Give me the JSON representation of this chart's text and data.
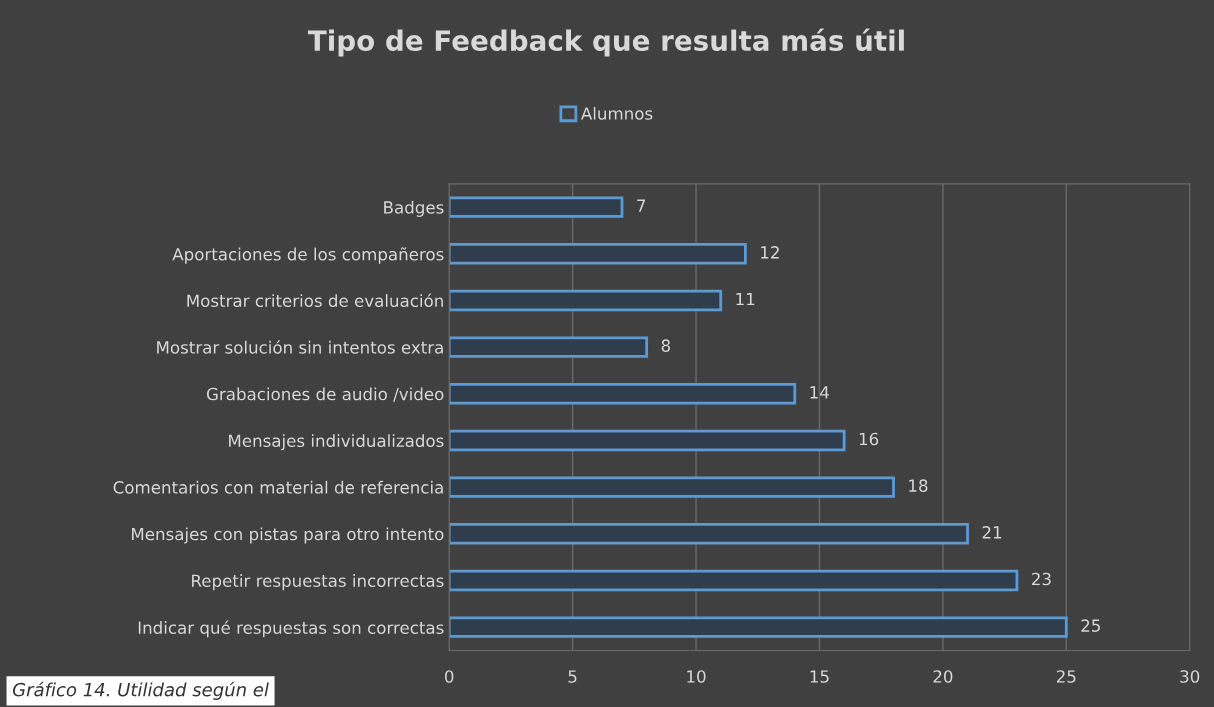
{
  "chart_data": {
    "type": "bar",
    "orientation": "horizontal",
    "title": "Tipo de Feedback que resulta más útil",
    "categories": [
      "Badges",
      "Aportaciones de los compañeros",
      "Mostrar criterios de evaluación",
      "Mostrar solución sin intentos extra",
      "Grabaciones de audio /video",
      "Mensajes individualizados",
      "Comentarios con material de referencia",
      "Mensajes con pistas para otro intento",
      "Repetir respuestas incorrectas",
      "Indicar qué respuestas son correctas"
    ],
    "series": [
      {
        "name": "Alumnos",
        "color": "#5b9bd5",
        "values": [
          7,
          12,
          11,
          8,
          14,
          16,
          18,
          21,
          23,
          25
        ]
      }
    ],
    "xlim": [
      0,
      30
    ],
    "xticks": [
      0,
      5,
      10,
      15,
      20,
      25,
      30
    ],
    "grid": "x",
    "legend": "top",
    "data_labels": true,
    "annotations": [
      "Gráfico 14. Utilidad según el"
    ]
  }
}
